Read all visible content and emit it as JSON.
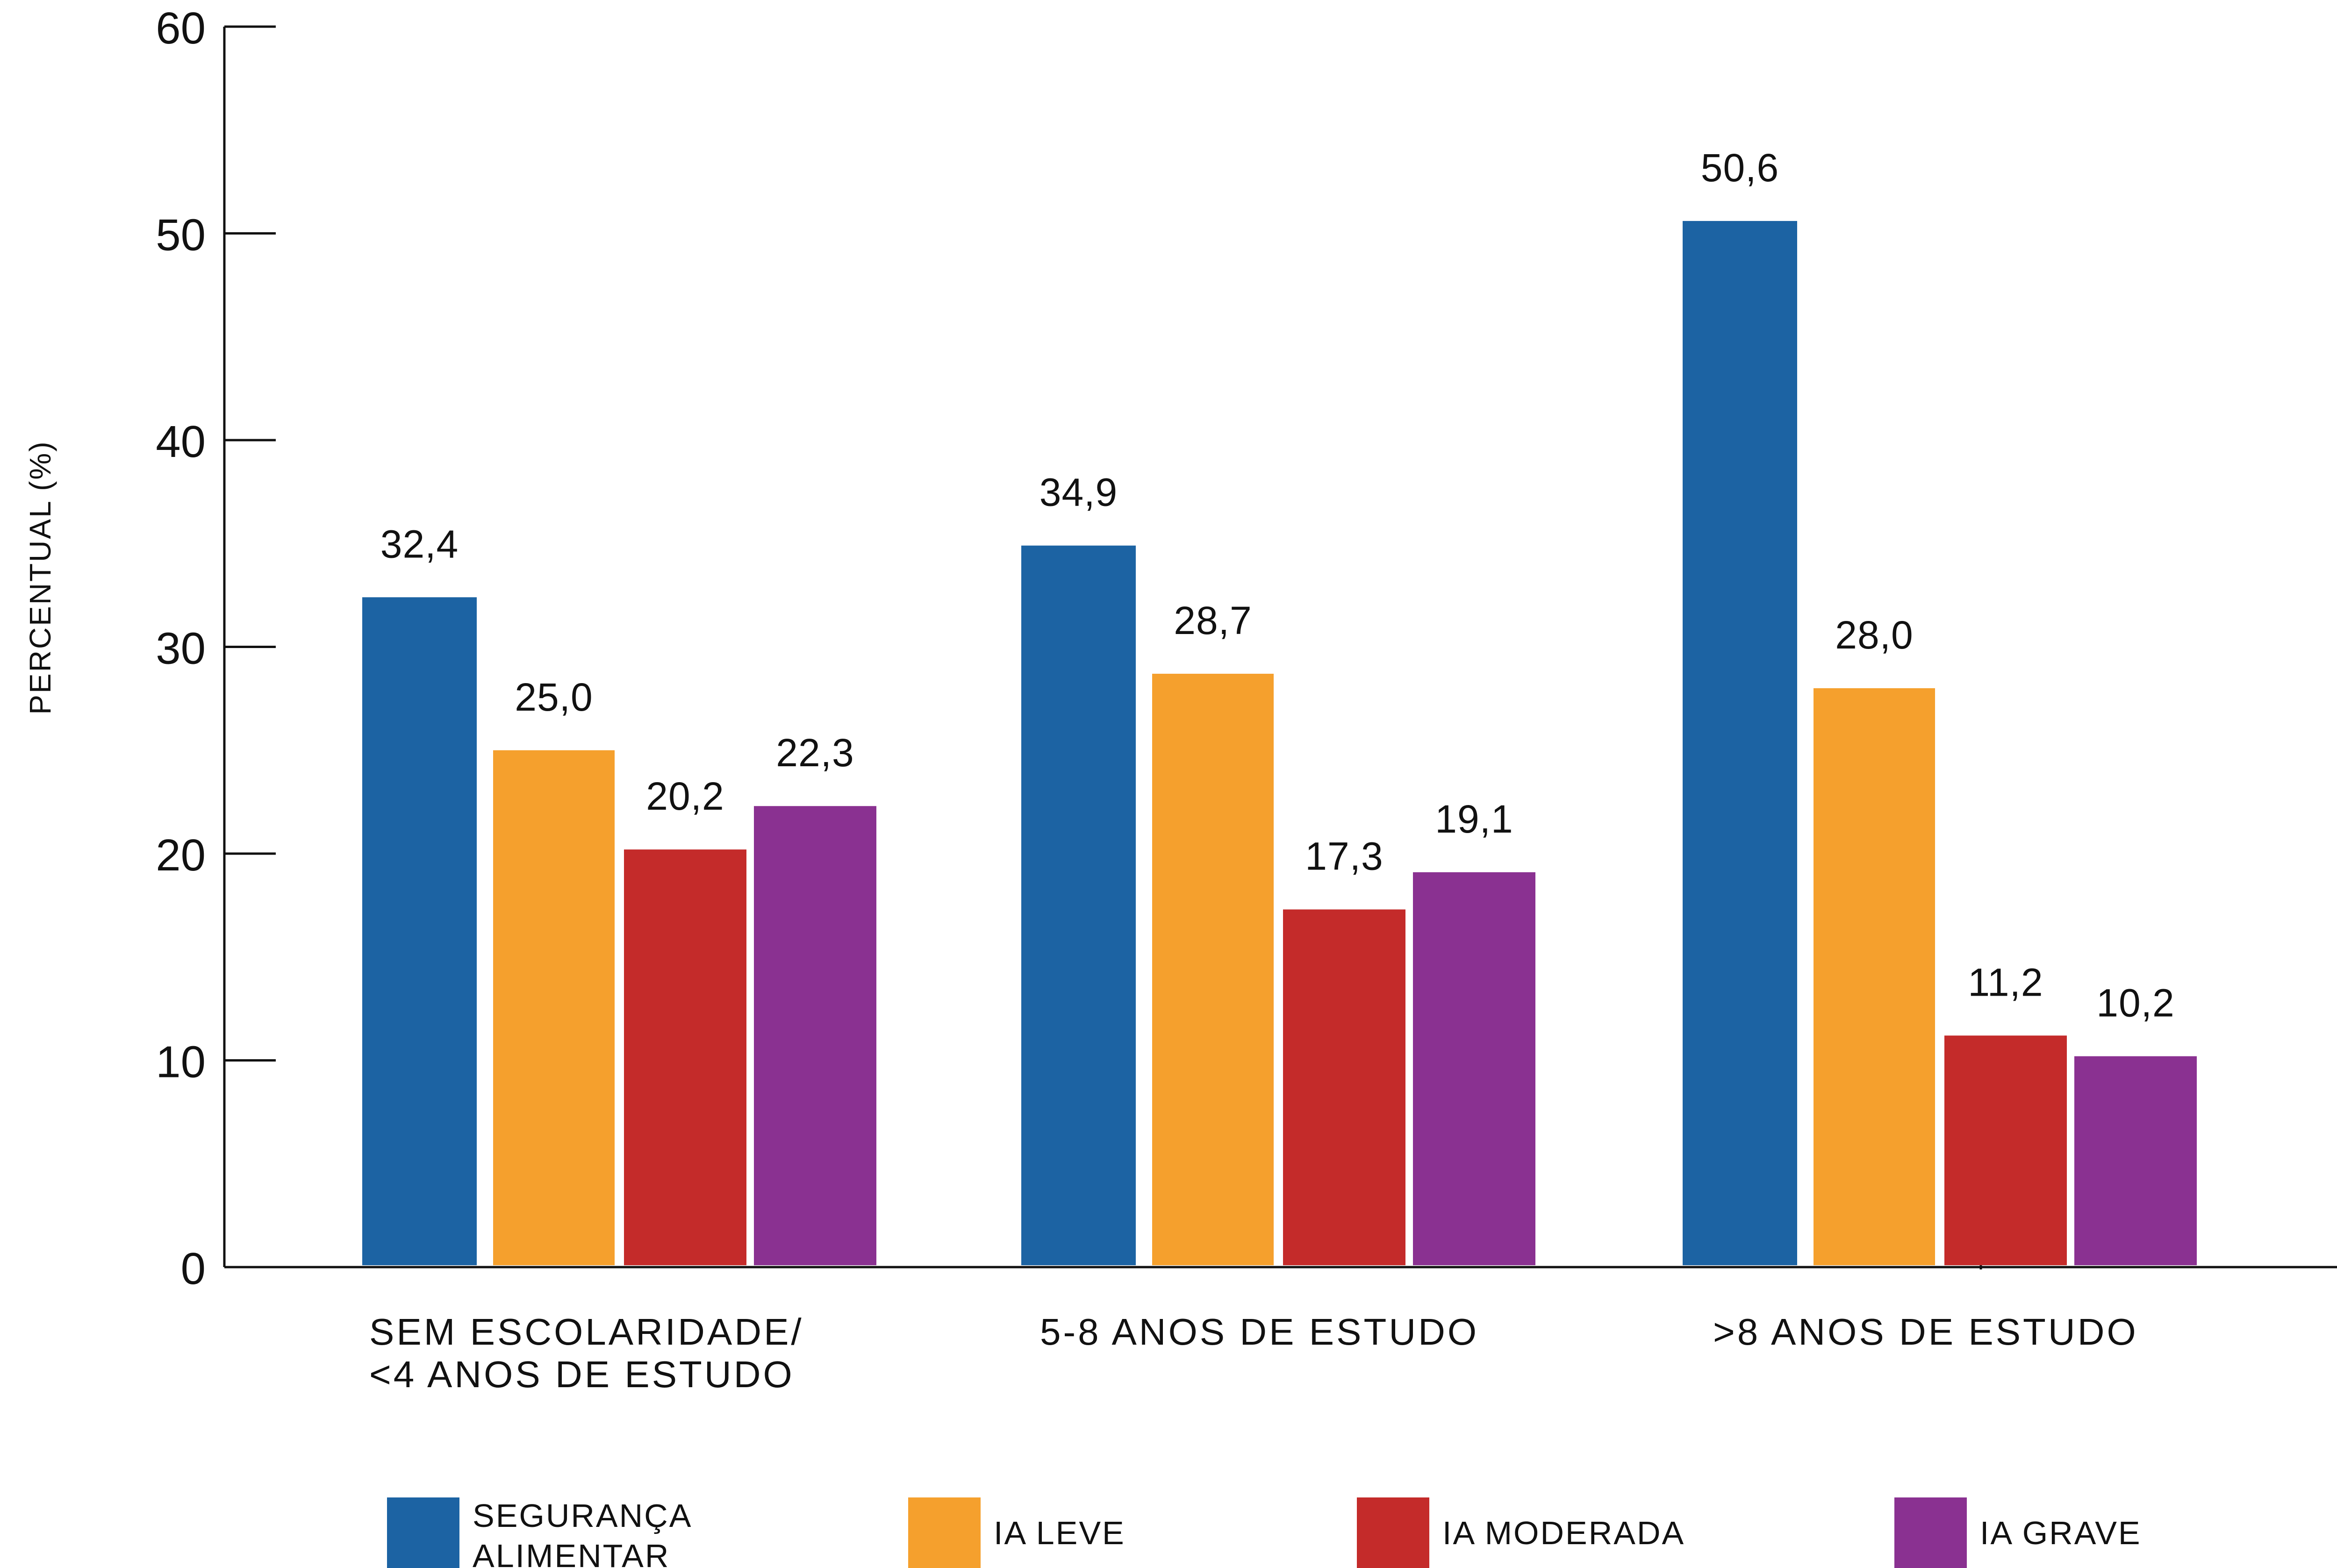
{
  "chart_data": {
    "type": "bar",
    "ylabel": "PERCENTUAL (%)",
    "ylim": [
      0,
      60
    ],
    "yticks": [
      0,
      10,
      20,
      30,
      40,
      50,
      60
    ],
    "grid": false,
    "legend_position": "bottom",
    "categories": [
      [
        "SEM ESCOLARIDADE/",
        "<4 ANOS DE ESTUDO"
      ],
      [
        "5-8 ANOS DE ESTUDO"
      ],
      [
        ">8 ANOS DE ESTUDO"
      ]
    ],
    "series": [
      {
        "name": [
          "SEGURANÇA",
          "ALIMENTAR"
        ],
        "color": "#1c63a3",
        "values": [
          32.4,
          34.9,
          50.6
        ],
        "labels": [
          "32,4",
          "34,9",
          "50,6"
        ]
      },
      {
        "name": [
          "IA LEVE"
        ],
        "color": "#f5a02d",
        "values": [
          25.0,
          28.7,
          28.0
        ],
        "labels": [
          "25,0",
          "28,7",
          "28,0"
        ]
      },
      {
        "name": [
          "IA MODERADA"
        ],
        "color": "#c42b2a",
        "values": [
          20.2,
          17.3,
          11.2
        ],
        "labels": [
          "20,2",
          "17,3",
          "11,2"
        ]
      },
      {
        "name": [
          "IA GRAVE"
        ],
        "color": "#8a3191",
        "values": [
          22.3,
          19.1,
          10.2
        ],
        "labels": [
          "22,3",
          "19,1",
          "10,2"
        ]
      }
    ]
  }
}
